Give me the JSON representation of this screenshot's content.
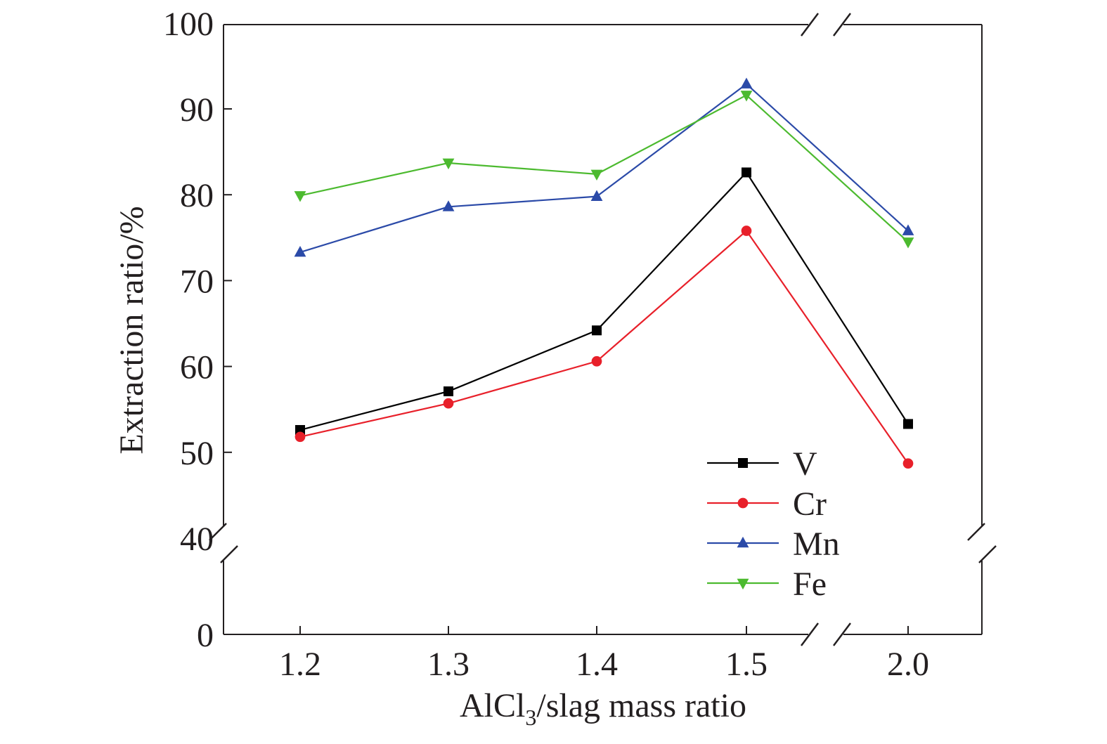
{
  "chart_data": {
    "type": "line",
    "title": "",
    "xlabel": {
      "main": "AlCl",
      "sub": "3",
      "rest": "/slag mass ratio"
    },
    "ylabel": "Extraction ratio/%",
    "categories": [
      "1.2",
      "1.3",
      "1.4",
      "1.5",
      "2.0"
    ],
    "x": [
      1.2,
      1.3,
      1.4,
      1.5,
      2.0
    ],
    "x_break": {
      "between": [
        1.5,
        2.0
      ]
    },
    "y_ticks": [
      "0",
      "40",
      "50",
      "60",
      "70",
      "80",
      "90",
      "100"
    ],
    "y_break": {
      "between": [
        0,
        40
      ]
    },
    "ylim": [
      0,
      100
    ],
    "grid": false,
    "legend": "bottom-right",
    "series": [
      {
        "name": "V",
        "color": "#000000",
        "marker": "square",
        "values": [
          52.6,
          57.1,
          64.2,
          82.6,
          53.3
        ]
      },
      {
        "name": "Cr",
        "color": "#e8202a",
        "marker": "circle",
        "values": [
          51.8,
          55.7,
          60.6,
          75.8,
          48.7
        ]
      },
      {
        "name": "Mn",
        "color": "#2b4aa8",
        "marker": "triangle-up",
        "values": [
          73.3,
          78.6,
          79.8,
          92.9,
          75.8
        ]
      },
      {
        "name": "Fe",
        "color": "#4cba2f",
        "marker": "triangle-down",
        "values": [
          79.9,
          83.7,
          82.4,
          91.6,
          74.5
        ]
      }
    ]
  }
}
